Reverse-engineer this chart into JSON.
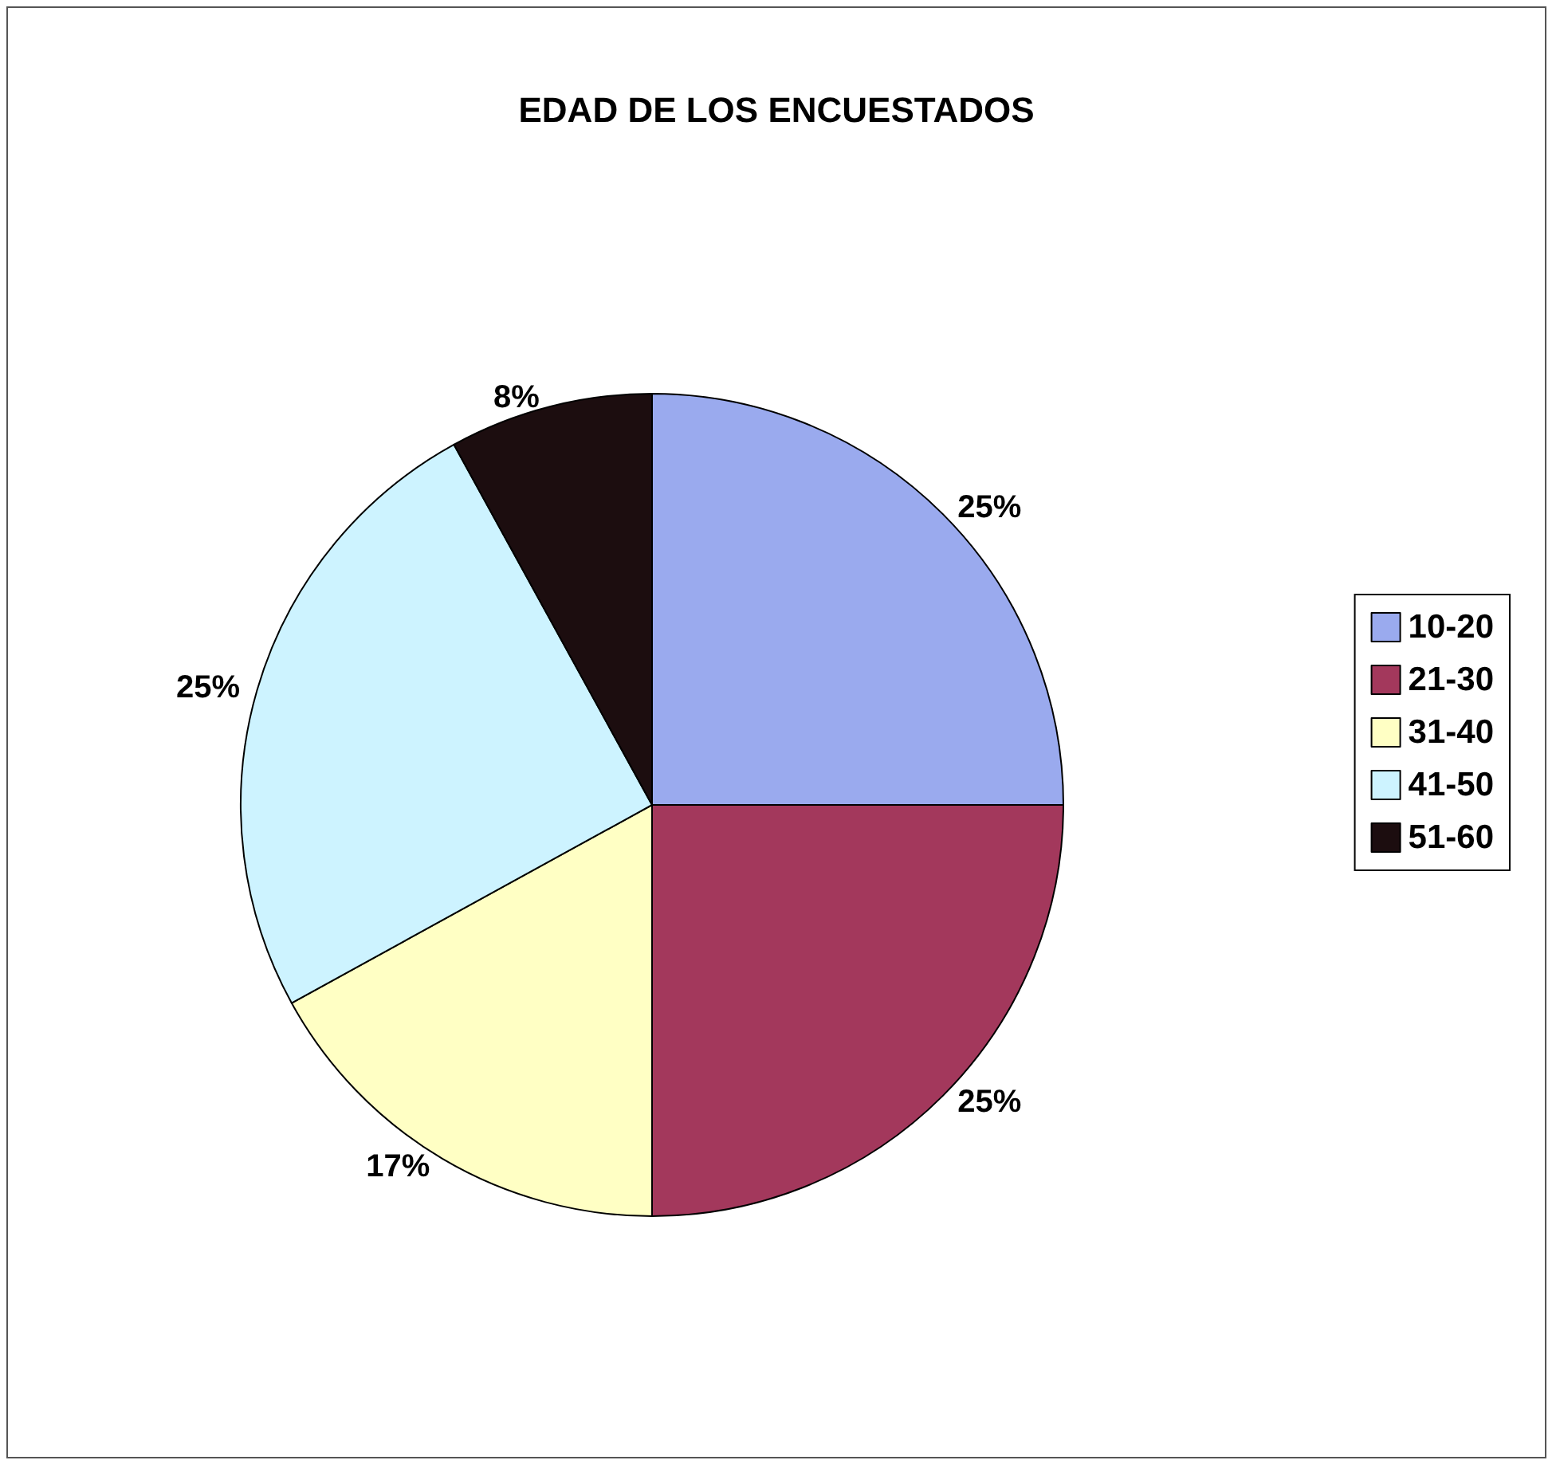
{
  "chart_data": {
    "type": "pie",
    "title": "EDAD DE LOS ENCUESTADOS",
    "categories": [
      "10-20",
      "21-30",
      "31-40",
      "41-50",
      "51-60"
    ],
    "values": [
      25,
      25,
      17,
      25,
      8
    ],
    "value_labels": [
      "25%",
      "25%",
      "17%",
      "25%",
      "8%"
    ],
    "colors": [
      "#9aaaee",
      "#a3385c",
      "#ffffc4",
      "#cdf3ff",
      "#1c0d0f"
    ],
    "legend": "right"
  }
}
